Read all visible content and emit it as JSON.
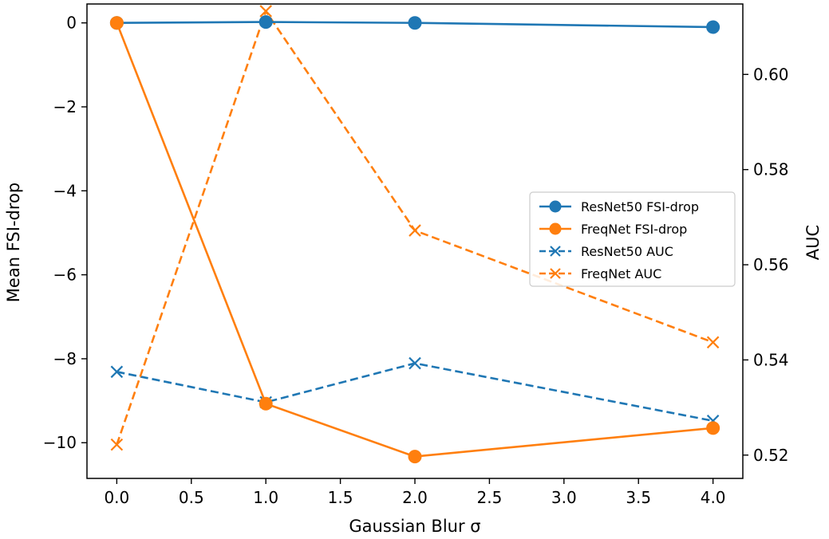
{
  "chart_data": {
    "type": "line",
    "xlabel": "Gaussian Blur σ",
    "ylabel_left": "Mean FSI-drop",
    "ylabel_right": "AUC",
    "xlim": [
      -0.2,
      4.2
    ],
    "ylim_left": [
      -10.85,
      0.45
    ],
    "ylim_right": [
      0.5151,
      0.6148
    ],
    "x_ticks": [
      "0.0",
      "0.5",
      "1.0",
      "1.5",
      "2.0",
      "2.5",
      "3.0",
      "3.5",
      "4.0"
    ],
    "y_left_ticks": [
      "0",
      "−2",
      "−4",
      "−6",
      "−8",
      "−10"
    ],
    "y_right_ticks": [
      "0.52",
      "0.54",
      "0.56",
      "0.58",
      "0.60"
    ],
    "x": [
      0.0,
      1.0,
      2.0,
      4.0
    ],
    "series": [
      {
        "name": "ResNet50 FSI-drop",
        "axis": "left",
        "style": "solid",
        "marker": "circle",
        "color": "#1f77b4",
        "values": [
          0.0,
          0.02,
          0.0,
          -0.1
        ]
      },
      {
        "name": "FreqNet FSI-drop",
        "axis": "left",
        "style": "solid",
        "marker": "circle",
        "color": "#ff7f0e",
        "values": [
          0.0,
          -9.07,
          -10.33,
          -9.65
        ]
      },
      {
        "name": "ResNet50 AUC",
        "axis": "right",
        "style": "dashed",
        "marker": "x",
        "color": "#1f77b4",
        "values": [
          0.5375,
          0.5311,
          0.5393,
          0.5272
        ]
      },
      {
        "name": "FreqNet AUC",
        "axis": "right",
        "style": "dashed",
        "marker": "x",
        "color": "#ff7f0e",
        "values": [
          0.5222,
          0.6133,
          0.5672,
          0.5437
        ]
      }
    ],
    "legend_position": "center-right"
  }
}
